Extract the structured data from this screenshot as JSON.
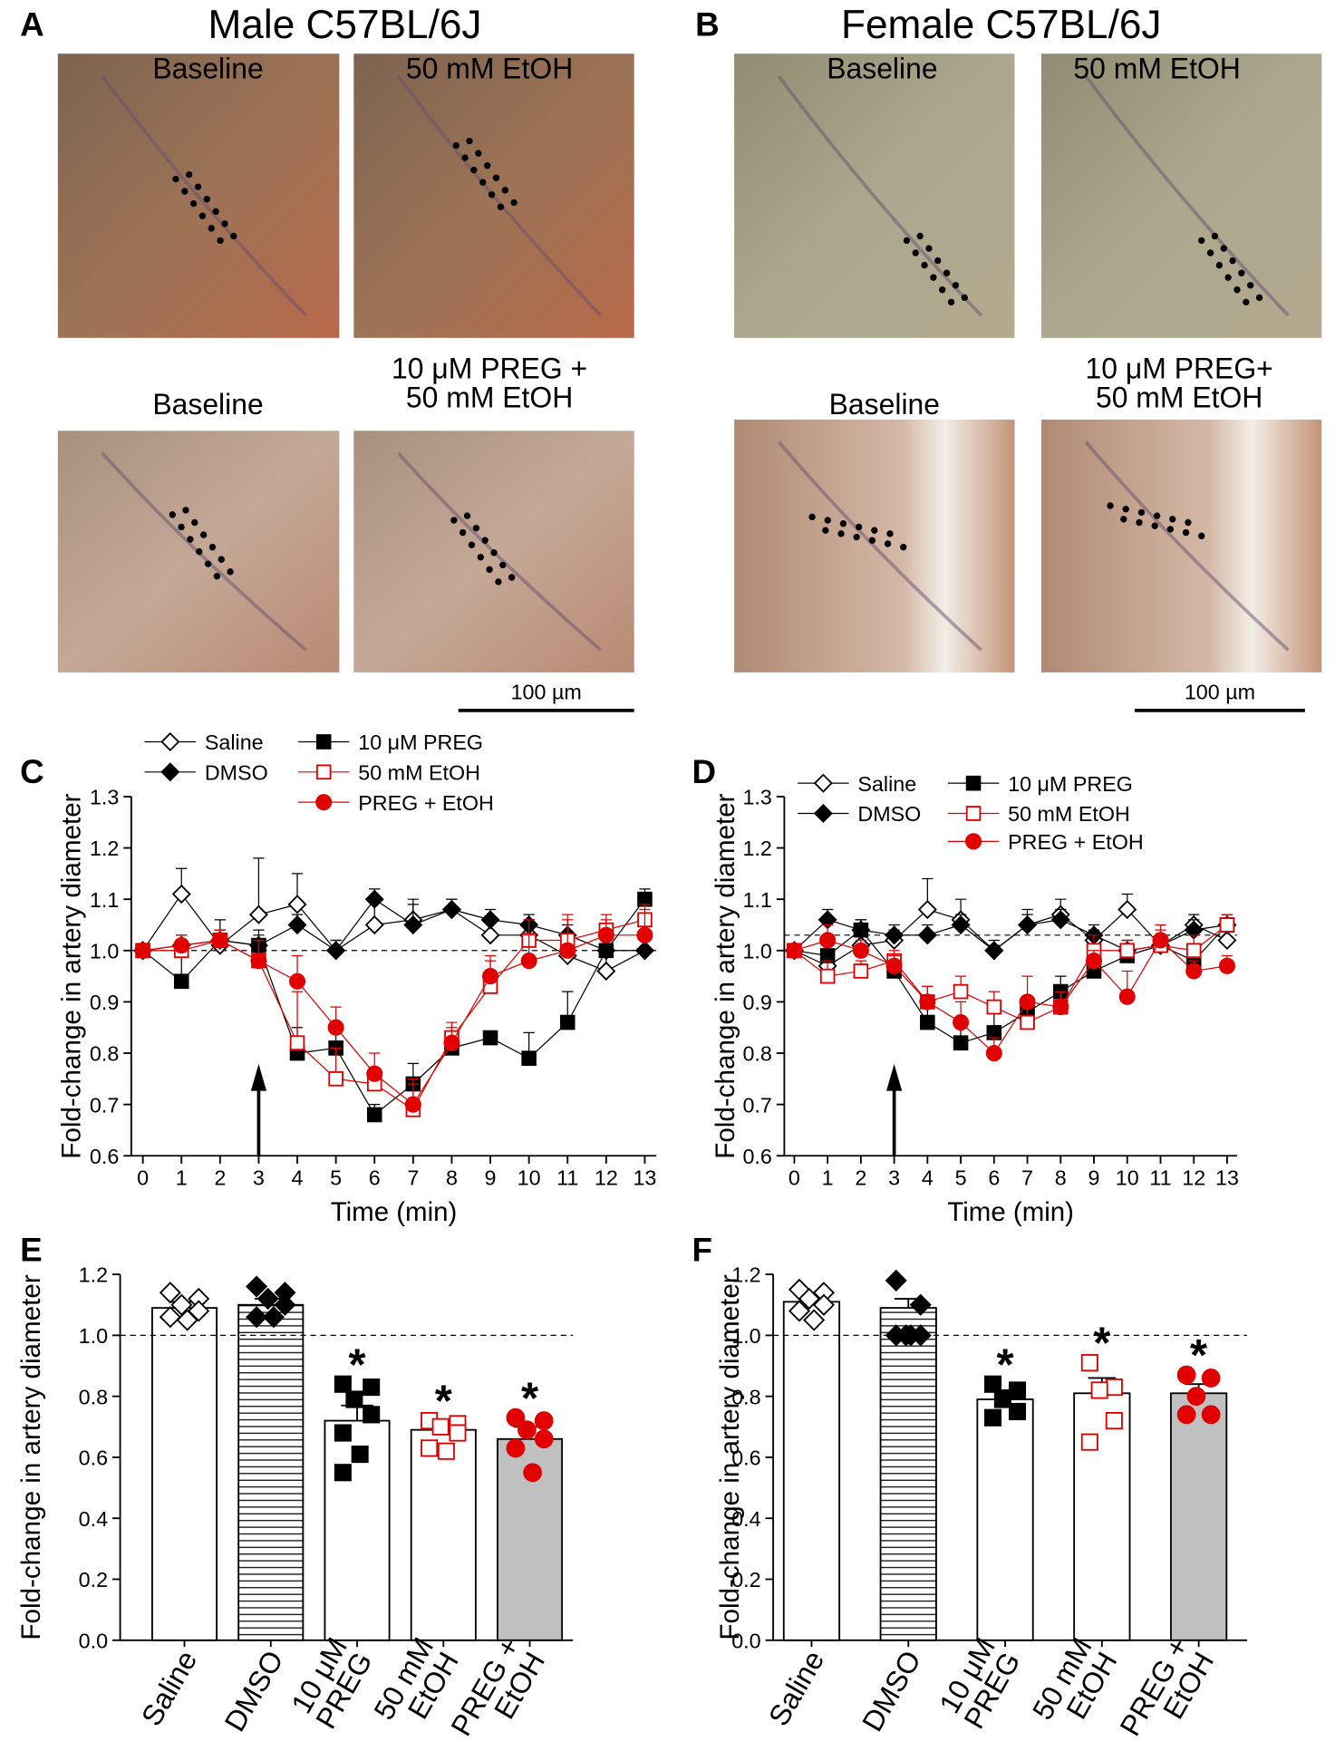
{
  "photo_panels": [
    {
      "letter": "A",
      "title": "Male C57BL/6J",
      "images": [
        "Baseline",
        "50 mM EtOH",
        "Baseline",
        "10 μM PREG +\n50 mM EtOH"
      ],
      "scale_bar": "100 µm"
    },
    {
      "letter": "B",
      "title": "Female C57BL/6J",
      "images": [
        "Baseline",
        "50 mM EtOH",
        "Baseline",
        "10 μM PREG+\n50 mM EtOH"
      ],
      "scale_bar": "100 µm"
    }
  ],
  "chart_data": [
    {
      "type": "line",
      "panel_label": "C",
      "x_label": "Time (min)",
      "y_label": "Fold-change in artery diameter",
      "x": [
        0,
        1,
        2,
        3,
        4,
        5,
        6,
        7,
        8,
        9,
        10,
        11,
        12,
        13
      ],
      "xlim": [
        -0.3,
        13.3
      ],
      "xticks": [
        0,
        1,
        2,
        3,
        4,
        5,
        6,
        7,
        8,
        9,
        10,
        11,
        12,
        13
      ],
      "ylim": [
        0.6,
        1.3
      ],
      "yticks": [
        0.6,
        0.7,
        0.8,
        0.9,
        {
          "value": 1,
          "label": "1.0"
        },
        1.1,
        1.2,
        1.3
      ],
      "reference_line": 1,
      "arrow_x": 3,
      "series": [
        {
          "name": "Saline",
          "color": "#000000",
          "marker": "diamond",
          "filled": false,
          "values": [
            1.0,
            1.11,
            1.01,
            1.07,
            1.09,
            1.0,
            1.05,
            1.06,
            1.08,
            1.03,
            1.03,
            0.99,
            0.96,
            1.0
          ],
          "errors": [
            0,
            0.05,
            0.03,
            0.11,
            0.06,
            0.02,
            0.05,
            0.04,
            0.02,
            0.03,
            0.03,
            0.04,
            0.03,
            0.03
          ]
        },
        {
          "name": "DMSO",
          "color": "#000000",
          "marker": "diamond",
          "filled": true,
          "values": [
            1.0,
            1.01,
            1.02,
            1.01,
            1.05,
            1.0,
            1.1,
            1.05,
            1.08,
            1.06,
            1.05,
            1.03,
            1.0,
            1.0
          ],
          "errors": [
            0,
            0.02,
            0.02,
            0.03,
            0.02,
            0.02,
            0.02,
            0.04,
            0.02,
            0.02,
            0.02,
            0.02,
            0.02,
            0.02
          ]
        },
        {
          "name": "10 μM PREG",
          "color": "#000000",
          "marker": "square",
          "filled": true,
          "values": [
            1.0,
            0.94,
            1.02,
            1.01,
            0.8,
            0.81,
            0.68,
            0.74,
            0.81,
            0.83,
            0.79,
            0.86,
            1.0,
            1.1
          ],
          "errors": [
            0,
            0.06,
            0.04,
            0.02,
            0.05,
            0.03,
            0.02,
            0.04,
            0.03,
            0.01,
            0.05,
            0.06,
            0.03,
            0.02
          ]
        },
        {
          "name": "50 mM EtOH",
          "color": "#e00000",
          "marker": "square",
          "filled": false,
          "values": [
            1.0,
            1.0,
            1.02,
            0.98,
            0.82,
            0.75,
            0.74,
            0.69,
            0.83,
            0.93,
            1.02,
            1.02,
            1.04,
            1.06
          ],
          "errors": [
            0,
            0.02,
            0.02,
            0.04,
            0.1,
            0.06,
            0.03,
            0.05,
            0.03,
            0.05,
            0.04,
            0.04,
            0.02,
            0.03
          ]
        },
        {
          "name": "PREG + EtOH",
          "color": "#e00000",
          "marker": "circle",
          "filled": true,
          "values": [
            1.0,
            1.01,
            1.02,
            0.98,
            0.94,
            0.85,
            0.76,
            0.7,
            0.82,
            0.95,
            0.98,
            1.0,
            1.03,
            1.03
          ],
          "errors": [
            0,
            0.02,
            0.02,
            0.04,
            0.05,
            0.04,
            0.04,
            0.05,
            0.03,
            0.04,
            0.05,
            0.07,
            0.04,
            0.05
          ]
        }
      ]
    },
    {
      "type": "line",
      "panel_label": "D",
      "x_label": "Time (min)",
      "y_label": "Fold-change in artery diameter",
      "x": [
        0,
        1,
        2,
        3,
        4,
        5,
        6,
        7,
        8,
        9,
        10,
        11,
        12,
        13
      ],
      "xlim": [
        -0.3,
        13.3
      ],
      "xticks": [
        0,
        1,
        2,
        3,
        4,
        5,
        6,
        7,
        8,
        9,
        10,
        11,
        12,
        13
      ],
      "ylim": [
        0.6,
        1.3
      ],
      "yticks": [
        0.6,
        0.7,
        0.8,
        0.9,
        {
          "value": 1,
          "label": "1.0"
        },
        1.1,
        1.2,
        1.3
      ],
      "reference_line": 1.03,
      "arrow_x": 3,
      "series": [
        {
          "name": "Saline",
          "color": "#000000",
          "marker": "diamond",
          "filled": false,
          "values": [
            1.0,
            0.97,
            1.01,
            1.02,
            1.08,
            1.06,
            1.0,
            1.05,
            1.07,
            1.02,
            1.08,
            1.01,
            1.05,
            1.02
          ],
          "errors": [
            0,
            0.03,
            0.02,
            0.02,
            0.06,
            0.04,
            0.02,
            0.03,
            0.03,
            0.02,
            0.03,
            0.02,
            0.02,
            0.02
          ]
        },
        {
          "name": "DMSO",
          "color": "#000000",
          "marker": "diamond",
          "filled": true,
          "values": [
            1.0,
            1.06,
            1.04,
            1.03,
            1.03,
            1.05,
            1.0,
            1.05,
            1.06,
            1.03,
            1.0,
            1.01,
            1.04,
            1.05
          ],
          "errors": [
            0,
            0.02,
            0.02,
            0.02,
            0.02,
            0.02,
            0.01,
            0.02,
            0.02,
            0.02,
            0.02,
            0.02,
            0.02,
            0.02
          ]
        },
        {
          "name": "10 μM PREG",
          "color": "#000000",
          "marker": "square",
          "filled": true,
          "values": [
            1.0,
            0.99,
            1.04,
            0.96,
            0.86,
            0.82,
            0.84,
            0.88,
            0.92,
            0.96,
            0.99,
            1.01,
            0.98,
            1.05
          ],
          "errors": [
            0,
            0.03,
            0.02,
            0.03,
            0.03,
            0.03,
            0.04,
            0.03,
            0.03,
            0.03,
            0.03,
            0.02,
            0.03,
            0.02
          ]
        },
        {
          "name": "50 mM EtOH",
          "color": "#e00000",
          "marker": "square",
          "filled": false,
          "values": [
            1.0,
            0.95,
            0.96,
            0.98,
            0.9,
            0.92,
            0.89,
            0.86,
            0.89,
            1.0,
            1.0,
            1.01,
            1.0,
            1.05
          ],
          "errors": [
            0,
            0.03,
            0.02,
            0.02,
            0.03,
            0.03,
            0.03,
            0.05,
            0.03,
            0.03,
            0.02,
            0.03,
            0.03,
            0.02
          ]
        },
        {
          "name": "PREG + EtOH",
          "color": "#e00000",
          "marker": "circle",
          "filled": true,
          "values": [
            1.0,
            1.02,
            1.0,
            0.97,
            0.9,
            0.86,
            0.8,
            0.9,
            0.89,
            0.98,
            0.91,
            1.02,
            0.96,
            0.97
          ],
          "errors": [
            0,
            0.03,
            0.02,
            0.02,
            0.03,
            0.04,
            0.03,
            0.05,
            0.03,
            0.02,
            0.05,
            0.03,
            0.02,
            0.02
          ]
        }
      ]
    },
    {
      "type": "bar",
      "panel_label": "E",
      "y_label": "Fold-change in artery diameter",
      "categories": [
        "Saline",
        "DMSO",
        "10 μM\nPREG",
        "50 mM\nEtOH",
        "PREG +\nEtOH"
      ],
      "values": [
        1.09,
        1.1,
        0.72,
        0.69,
        0.66
      ],
      "errors": [
        0.02,
        0.02,
        0.05,
        0.03,
        0.04
      ],
      "bar_fills": [
        "#ffffff",
        "hatch",
        "#ffffff",
        "#ffffff",
        "#c0c0c0"
      ],
      "markers": [
        {
          "marker": "diamond",
          "filled": false,
          "color": "#000000"
        },
        {
          "marker": "diamond",
          "filled": true,
          "color": "#000000"
        },
        {
          "marker": "square",
          "filled": true,
          "color": "#000000"
        },
        {
          "marker": "square",
          "filled": false,
          "color": "#e00000"
        },
        {
          "marker": "circle",
          "filled": true,
          "color": "#e00000"
        }
      ],
      "points": [
        [
          1.14,
          1.12,
          1.1,
          1.08,
          1.06,
          1.05
        ],
        [
          1.16,
          1.14,
          1.12,
          1.1,
          1.06,
          1.06
        ],
        [
          0.84,
          0.83,
          0.79,
          0.74,
          0.68,
          0.61,
          0.55
        ],
        [
          0.72,
          0.71,
          0.7,
          0.68,
          0.63,
          0.62
        ],
        [
          0.73,
          0.72,
          0.69,
          0.66,
          0.63,
          0.55
        ]
      ],
      "significance": [
        null,
        null,
        "*",
        "*",
        "*"
      ],
      "reference_line": 1,
      "ylim": [
        0,
        1.2
      ],
      "yticks": [
        {
          "value": 0,
          "label": "0.0"
        },
        0.2,
        0.4,
        0.6,
        0.8,
        {
          "value": 1,
          "label": "1.0"
        },
        1.2
      ]
    },
    {
      "type": "bar",
      "panel_label": "F",
      "y_label": "Fold-change in artery diameter",
      "categories": [
        "Saline",
        "DMSO",
        "10 μM\nPREG",
        "50 mM\nEtOH",
        "PREG +\nEtOH"
      ],
      "values": [
        1.11,
        1.09,
        0.79,
        0.81,
        0.81
      ],
      "errors": [
        0.02,
        0.03,
        0.03,
        0.05,
        0.03
      ],
      "bar_fills": [
        "#ffffff",
        "hatch",
        "#ffffff",
        "#ffffff",
        "#c0c0c0"
      ],
      "markers": [
        {
          "marker": "diamond",
          "filled": false,
          "color": "#000000"
        },
        {
          "marker": "diamond",
          "filled": true,
          "color": "#000000"
        },
        {
          "marker": "square",
          "filled": true,
          "color": "#000000"
        },
        {
          "marker": "square",
          "filled": false,
          "color": "#e00000"
        },
        {
          "marker": "circle",
          "filled": true,
          "color": "#e00000"
        }
      ],
      "points": [
        [
          1.15,
          1.14,
          1.12,
          1.1,
          1.08,
          1.05
        ],
        [
          1.18,
          1.1,
          1.0,
          1.0,
          1.0,
          1.0
        ],
        [
          0.84,
          0.82,
          0.79,
          0.75,
          0.73
        ],
        [
          0.91,
          0.83,
          0.82,
          0.72,
          0.65
        ],
        [
          0.87,
          0.86,
          0.8,
          0.74,
          0.74
        ]
      ],
      "significance": [
        null,
        null,
        "*",
        "*",
        "*"
      ],
      "reference_line": 1,
      "ylim": [
        0,
        1.2
      ],
      "yticks": [
        {
          "value": 0,
          "label": "0.0"
        },
        0.2,
        0.4,
        0.6,
        0.8,
        {
          "value": 1,
          "label": "1.0"
        },
        1.2
      ]
    }
  ]
}
